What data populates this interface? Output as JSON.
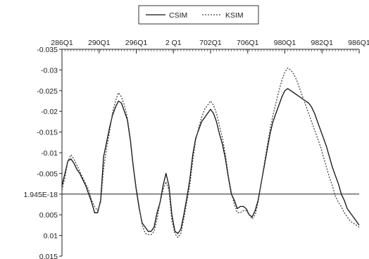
{
  "chart_data": {
    "type": "line",
    "orientation": "mirrored",
    "legend_position": "top-center",
    "grid": false,
    "title": "",
    "xlabel": "",
    "ylabel": "",
    "x_tick_labels": [
      "286Q1",
      "290Q1",
      "296Q1",
      "2 Q1",
      "702Q1",
      "706Q1",
      "980Q1",
      "982Q1",
      "986Q1"
    ],
    "y_tick_labels": [
      "-0.035",
      "-0.03",
      "-0.025",
      "-0.02",
      "-0.015",
      "-0.01",
      "-0.005",
      "1.945E-18",
      "0.005",
      "0.01",
      "0.015"
    ],
    "y_tick_values": [
      -0.035,
      -0.03,
      -0.025,
      -0.02,
      -0.015,
      -0.01,
      -0.005,
      0,
      0.005,
      0.01,
      0.015
    ],
    "ylim": [
      -0.035,
      0.015
    ],
    "x_range": [
      0,
      100
    ],
    "series": [
      {
        "name": "CSIM",
        "color": "#111111",
        "dash": "solid",
        "x": [
          0,
          1,
          2,
          3,
          4,
          5,
          6,
          7,
          8,
          9,
          10,
          11,
          12,
          13,
          14,
          15,
          16,
          17,
          18,
          19,
          20,
          21,
          22,
          23,
          24,
          25,
          26,
          27,
          28,
          29,
          30,
          31,
          32,
          33,
          34,
          35,
          36,
          37,
          38,
          39,
          40,
          41,
          42,
          43,
          44,
          45,
          46,
          47,
          48,
          49,
          50,
          51,
          52,
          53,
          54,
          55,
          56,
          57,
          58,
          59,
          60,
          61,
          62,
          63,
          64,
          65,
          66,
          67,
          68,
          69,
          70,
          71,
          72,
          73,
          74,
          75,
          76,
          77,
          78,
          79,
          80,
          81,
          82,
          83,
          84,
          85,
          86,
          87,
          88,
          89,
          90,
          91,
          92,
          93,
          94,
          95,
          96,
          97,
          98,
          99,
          100
        ],
        "values": [
          -0.002,
          -0.005,
          -0.008,
          -0.0085,
          -0.0075,
          -0.006,
          -0.005,
          -0.0035,
          -0.002,
          0,
          0.002,
          0.0045,
          0.0045,
          0.0015,
          -0.009,
          -0.0125,
          -0.016,
          -0.019,
          -0.021,
          -0.0225,
          -0.022,
          -0.02,
          -0.018,
          -0.013,
          -0.0065,
          -0.001,
          0.0035,
          0.007,
          0.008,
          0.009,
          0.009,
          0.008,
          0.0045,
          0.002,
          -0.002,
          -0.005,
          -0.002,
          0.005,
          0.009,
          0.0095,
          0.0085,
          0.005,
          0.001,
          -0.0035,
          -0.0095,
          -0.0135,
          -0.0155,
          -0.0175,
          -0.0185,
          -0.0195,
          -0.0205,
          -0.0195,
          -0.0175,
          -0.0145,
          -0.012,
          -0.0085,
          -0.004,
          0,
          0.0015,
          0.0035,
          0.003,
          0.003,
          0.0035,
          0.005,
          0.0055,
          0.004,
          0.0015,
          -0.0025,
          -0.0065,
          -0.0105,
          -0.0145,
          -0.0175,
          -0.0195,
          -0.0215,
          -0.0235,
          -0.025,
          -0.0255,
          -0.025,
          -0.0245,
          -0.024,
          -0.0235,
          -0.023,
          -0.0225,
          -0.022,
          -0.021,
          -0.0195,
          -0.0175,
          -0.0155,
          -0.0135,
          -0.0115,
          -0.009,
          -0.0065,
          -0.0045,
          -0.0025,
          0,
          0.0015,
          0.0035,
          0.0045,
          0.0055,
          0.0065,
          0.0075
        ]
      },
      {
        "name": "KSIM",
        "color": "#444444",
        "dash": "dotted",
        "x": [
          0,
          1,
          2,
          3,
          4,
          5,
          6,
          7,
          8,
          9,
          10,
          11,
          12,
          13,
          14,
          15,
          16,
          17,
          18,
          19,
          20,
          21,
          22,
          23,
          24,
          25,
          26,
          27,
          28,
          29,
          30,
          31,
          32,
          33,
          34,
          35,
          36,
          37,
          38,
          39,
          40,
          41,
          42,
          43,
          44,
          45,
          46,
          47,
          48,
          49,
          50,
          51,
          52,
          53,
          54,
          55,
          56,
          57,
          58,
          59,
          60,
          61,
          62,
          63,
          64,
          65,
          66,
          67,
          68,
          69,
          70,
          71,
          72,
          73,
          74,
          75,
          76,
          77,
          78,
          79,
          80,
          81,
          82,
          83,
          84,
          85,
          86,
          87,
          88,
          89,
          90,
          91,
          92,
          93,
          94,
          95,
          96,
          97,
          98,
          99,
          100
        ],
        "values": [
          -0.001,
          -0.004,
          -0.008,
          -0.0095,
          -0.0085,
          -0.007,
          -0.0055,
          -0.004,
          -0.0025,
          -0.001,
          0.0015,
          0.003,
          0.004,
          0.002,
          -0.006,
          -0.011,
          -0.015,
          -0.0195,
          -0.0225,
          -0.0245,
          -0.0235,
          -0.0215,
          -0.0185,
          -0.0135,
          -0.007,
          -0.0015,
          0.003,
          0.0075,
          0.0095,
          0.0098,
          0.0098,
          0.009,
          0.006,
          0.002,
          -0.001,
          -0.003,
          -0.001,
          0.0065,
          0.0095,
          0.0105,
          0.0095,
          0.006,
          0.002,
          -0.002,
          -0.008,
          -0.013,
          -0.016,
          -0.0185,
          -0.0205,
          -0.0215,
          -0.0225,
          -0.0215,
          -0.0195,
          -0.0165,
          -0.0135,
          -0.0095,
          -0.0045,
          -0.0005,
          0.0025,
          0.0045,
          0.0045,
          0.004,
          0.004,
          0.005,
          0.006,
          0.005,
          0.002,
          -0.0025,
          -0.007,
          -0.0115,
          -0.0155,
          -0.019,
          -0.022,
          -0.025,
          -0.0275,
          -0.0295,
          -0.0305,
          -0.03,
          -0.029,
          -0.0275,
          -0.0255,
          -0.0235,
          -0.0215,
          -0.0195,
          -0.0175,
          -0.0155,
          -0.0135,
          -0.0115,
          -0.009,
          -0.0065,
          -0.004,
          -0.002,
          0.0005,
          0.002,
          0.003,
          0.0045,
          0.0055,
          0.0065,
          0.007,
          0.0075,
          0.008
        ]
      }
    ]
  }
}
